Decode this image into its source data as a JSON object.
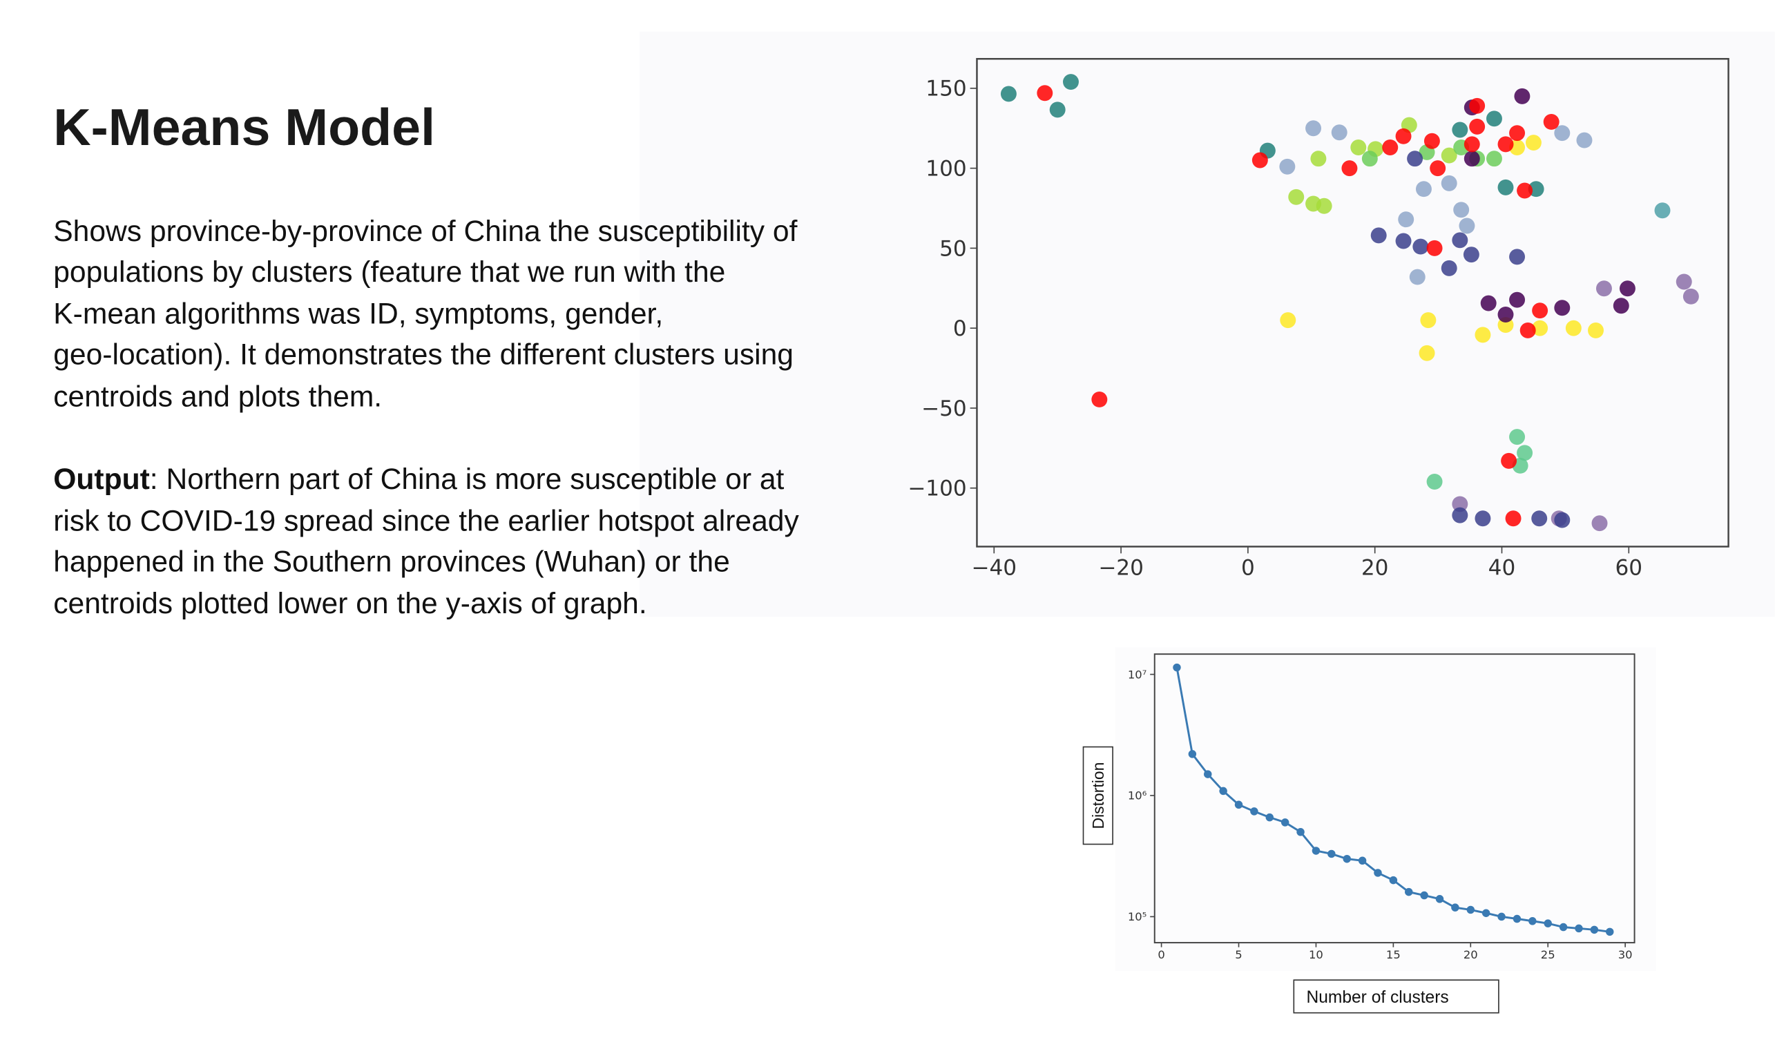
{
  "header": {
    "title": "K-Means Model"
  },
  "body": {
    "lines": [
      "Shows province-by-province of China the susceptibility of",
      "populations by clusters (feature that we run with the",
      "K-mean algorithms was ID, symptoms, gender,",
      "geo-location). It demonstrates the different clusters using",
      "centroids and plots them."
    ]
  },
  "output": {
    "label": "Output",
    "lines": [
      ":  Northern part of China is more susceptible or at",
      "risk to COVID-19 spread since the earlier hotspot already",
      "happened in the Southern provinces (Wuhan) or the",
      "centroids plotted lower on the y-axis of graph."
    ]
  },
  "chart_data": [
    {
      "type": "scatter",
      "xlim": [
        -42.7,
        75.7
      ],
      "ylim": [
        -136.6,
        168.4
      ],
      "xticks": [
        {
          "value": -40,
          "label": "−40"
        },
        {
          "value": -20,
          "label": "−20"
        },
        0,
        20,
        40,
        60
      ],
      "yticks": [
        {
          "value": -100,
          "label": "−100"
        },
        {
          "value": -50,
          "label": "−50"
        },
        0,
        50,
        100,
        150
      ],
      "series": [
        {
          "color": "#21807a",
          "x": [
            -37.7,
            -27.9,
            -30,
            3.1,
            40.6,
            45.4,
            33.4,
            38.8
          ],
          "values": [
            146.5,
            154,
            136.6,
            111,
            88,
            87,
            124,
            131
          ]
        },
        {
          "color": "#8ea6c9",
          "x": [
            10.3,
            14.4,
            6.2,
            27.7,
            31.7,
            33.6,
            34.5,
            24.9,
            26.7,
            53,
            49.5
          ],
          "values": [
            125,
            122.4,
            101,
            87,
            90.6,
            74,
            64,
            68,
            32,
            117.5,
            122
          ]
        },
        {
          "color": "#4fa0a8",
          "x": [
            65.3
          ],
          "values": [
            73.6
          ]
        },
        {
          "color": "#8b6fa8",
          "x": [
            56.1,
            68.7,
            69.8,
            55.4,
            33.4,
            49
          ],
          "values": [
            24.8,
            29,
            19.8,
            -122,
            -110,
            -119
          ]
        },
        {
          "color": "#a6dc3a",
          "x": [
            7.6,
            10.3,
            12,
            11.1,
            17.4,
            20.1,
            25.4,
            31.7
          ],
          "values": [
            82,
            77.8,
            76.4,
            106,
            113,
            112,
            127,
            108
          ]
        },
        {
          "color": "#6ccc5a",
          "x": [
            19.2,
            28.2,
            33.6,
            36.1,
            38.8
          ],
          "values": [
            106,
            110,
            113,
            106,
            106
          ]
        },
        {
          "color": "#fde725",
          "x": [
            6.3,
            28.4,
            28.2,
            37,
            40.6,
            46,
            51.3,
            54.8,
            42.4,
            45
          ],
          "values": [
            5,
            5,
            -15.6,
            -4.2,
            2,
            0,
            0,
            -1.4,
            113,
            116
          ]
        },
        {
          "color": "#5ec98d",
          "x": [
            29.4,
            42.4,
            43.6,
            42.9
          ],
          "values": [
            -96,
            -68,
            -78,
            -86
          ]
        },
        {
          "color": "#3b3f8c",
          "x": [
            20.6,
            24.5,
            27.2,
            33.4,
            35.2,
            31.7,
            42.4,
            33.4,
            37,
            49.5,
            45.9,
            26.3
          ],
          "values": [
            58,
            54.5,
            51,
            55,
            46,
            37.5,
            44.6,
            -117,
            -119,
            -120,
            -119,
            106
          ]
        },
        {
          "color": "#440154",
          "x": [
            37.9,
            42.4,
            49.5,
            58.8,
            59.8,
            35.3,
            43.2,
            35.3,
            40.6
          ],
          "values": [
            15.6,
            17.7,
            12.7,
            14,
            24.8,
            106,
            145,
            138,
            8.5
          ]
        },
        {
          "color": "#ff0000",
          "x": [
            -32,
            -23.4,
            1.9,
            16,
            22.4,
            24.5,
            29,
            29.9,
            36.1,
            36.1,
            35.3,
            40.6,
            42.4,
            47.8,
            43.6,
            29.4,
            46,
            44.1,
            41.1,
            41.8
          ],
          "values": [
            147,
            -44.6,
            105,
            100,
            113,
            120,
            117,
            100,
            139,
            126,
            115,
            115,
            122,
            129,
            86,
            50,
            11,
            -1.4,
            -83,
            -119
          ]
        }
      ]
    },
    {
      "type": "line",
      "x_label": "Number of clusters",
      "y_label": "Distortion",
      "log_y": true,
      "color": "#3a7ab3",
      "x": [
        1,
        2,
        3,
        4,
        5,
        6,
        7,
        8,
        9,
        10,
        11,
        12,
        13,
        14,
        15,
        16,
        17,
        18,
        19,
        20,
        21,
        22,
        23,
        24,
        25,
        26,
        27,
        28,
        29
      ],
      "values": [
        11400000,
        2200000,
        1500000,
        1090000,
        840000,
        740000,
        660000,
        600000,
        500000,
        350000,
        330000,
        300000,
        290000,
        230000,
        200000,
        160000,
        150000,
        140000,
        119000,
        114000,
        107000,
        100000,
        96000,
        92000,
        88000,
        82000,
        80000,
        78000,
        75000
      ],
      "xlim": [
        -0.44,
        30.6
      ],
      "ylim": [
        61000,
        14700000
      ],
      "xticks": [
        0,
        5,
        10,
        15,
        20,
        25,
        30
      ],
      "yticks": [
        {
          "value": 100000,
          "label": "10⁵"
        },
        {
          "value": 1000000,
          "label": "10⁶"
        },
        {
          "value": 10000000,
          "label": "10⁷"
        }
      ]
    }
  ]
}
